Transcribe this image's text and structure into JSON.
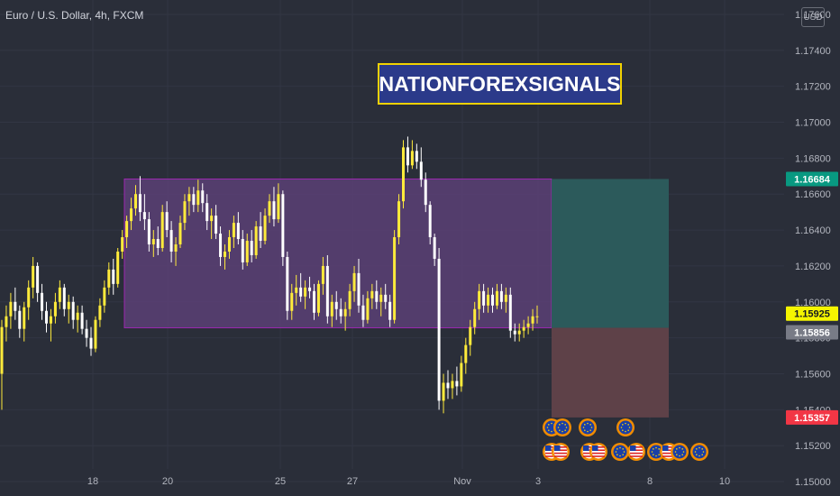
{
  "header": {
    "title": "Euro / U.S. Dollar, 4h, FXCM",
    "currency": "USD"
  },
  "watermark": {
    "text": "NATIONFOREXSIGNALS"
  },
  "colors": {
    "background": "#2a2e39",
    "candle": "#ffeb3b",
    "candle_down": "#ffffff",
    "box_fill": "#5b3f75",
    "box_border": "#9c27b0",
    "target_zone": "#2c5a5b",
    "stop_zone": "#5e4148",
    "target_label": "#089981",
    "stop_label": "#f23645",
    "current_label": "#f5f500",
    "entry_label": "#787b86",
    "grid": "#323644",
    "axis_text": "#b2b5be"
  },
  "chart_data": {
    "type": "candlestick",
    "title": "Euro / U.S. Dollar, 4h, FXCM",
    "ylim": [
      1.1492,
      1.1768
    ],
    "yticks": [
      "1.17600",
      "1.17400",
      "1.17200",
      "1.17000",
      "1.16800",
      "1.16600",
      "1.16400",
      "1.16200",
      "1.16000",
      "1.15800",
      "1.15600",
      "1.15400",
      "1.15200",
      "1.15000"
    ],
    "xticks": [
      "18",
      "20",
      "25",
      "27",
      "Nov",
      "3",
      "8",
      "10"
    ],
    "price_labels": [
      {
        "text": "1.16684",
        "value": 1.16684,
        "role": "target"
      },
      {
        "text": "1.15925",
        "value": 1.15925,
        "role": "current"
      },
      {
        "text": "1.15856",
        "value": 1.15856,
        "role": "entry"
      },
      {
        "text": "1.15357",
        "value": 1.15357,
        "role": "stop"
      }
    ],
    "range_box": {
      "top": 1.16684,
      "bottom": 1.15856
    },
    "position": {
      "entry": 1.15856,
      "target": 1.16684,
      "stop": 1.15357
    },
    "candles": [
      [
        1.156,
        1.159,
        1.154,
        1.1586
      ],
      [
        1.1586,
        1.1598,
        1.1578,
        1.1592
      ],
      [
        1.1592,
        1.1605,
        1.1585,
        1.16
      ],
      [
        1.16,
        1.1608,
        1.159,
        1.1595
      ],
      [
        1.1595,
        1.1598,
        1.158,
        1.1585
      ],
      [
        1.1585,
        1.16,
        1.1578,
        1.1597
      ],
      [
        1.1597,
        1.1612,
        1.159,
        1.1608
      ],
      [
        1.1608,
        1.1625,
        1.1602,
        1.162
      ],
      [
        1.162,
        1.1622,
        1.16,
        1.1605
      ],
      [
        1.1605,
        1.161,
        1.159,
        1.1595
      ],
      [
        1.1595,
        1.16,
        1.1583,
        1.1588
      ],
      [
        1.1588,
        1.1596,
        1.1578,
        1.1592
      ],
      [
        1.1592,
        1.1605,
        1.1588,
        1.16
      ],
      [
        1.16,
        1.1612,
        1.1596,
        1.1608
      ],
      [
        1.1608,
        1.161,
        1.1592,
        1.1596
      ],
      [
        1.1596,
        1.1604,
        1.1588,
        1.16
      ],
      [
        1.16,
        1.1603,
        1.1585,
        1.159
      ],
      [
        1.159,
        1.1598,
        1.1583,
        1.1594
      ],
      [
        1.1594,
        1.1598,
        1.1582,
        1.1585
      ],
      [
        1.1585,
        1.159,
        1.1575,
        1.158
      ],
      [
        1.158,
        1.1586,
        1.157,
        1.1574
      ],
      [
        1.1574,
        1.1592,
        1.1572,
        1.159
      ],
      [
        1.159,
        1.1602,
        1.1586,
        1.1598
      ],
      [
        1.1598,
        1.1612,
        1.1594,
        1.1608
      ],
      [
        1.1608,
        1.1622,
        1.1604,
        1.1618
      ],
      [
        1.1618,
        1.1624,
        1.1604,
        1.161
      ],
      [
        1.161,
        1.163,
        1.1608,
        1.1628
      ],
      [
        1.1628,
        1.164,
        1.1624,
        1.1636
      ],
      [
        1.1636,
        1.1648,
        1.163,
        1.1645
      ],
      [
        1.1645,
        1.1658,
        1.164,
        1.1652
      ],
      [
        1.1652,
        1.1665,
        1.1648,
        1.166
      ],
      [
        1.166,
        1.167,
        1.1645,
        1.165
      ],
      [
        1.165,
        1.166,
        1.164,
        1.1646
      ],
      [
        1.1646,
        1.165,
        1.1628,
        1.1632
      ],
      [
        1.1632,
        1.164,
        1.1625,
        1.1635
      ],
      [
        1.1635,
        1.1642,
        1.1626,
        1.163
      ],
      [
        1.163,
        1.1654,
        1.1628,
        1.165
      ],
      [
        1.165,
        1.1656,
        1.1636,
        1.164
      ],
      [
        1.164,
        1.1645,
        1.1622,
        1.1628
      ],
      [
        1.1628,
        1.1636,
        1.162,
        1.1632
      ],
      [
        1.1632,
        1.1648,
        1.163,
        1.1644
      ],
      [
        1.1644,
        1.166,
        1.164,
        1.1656
      ],
      [
        1.1656,
        1.1664,
        1.1648,
        1.166
      ],
      [
        1.166,
        1.1664,
        1.165,
        1.1654
      ],
      [
        1.1654,
        1.1668,
        1.165,
        1.1662
      ],
      [
        1.1662,
        1.1666,
        1.165,
        1.1655
      ],
      [
        1.1655,
        1.166,
        1.164,
        1.1645
      ],
      [
        1.1645,
        1.1652,
        1.1635,
        1.1648
      ],
      [
        1.1648,
        1.1654,
        1.1635,
        1.1638
      ],
      [
        1.1638,
        1.1642,
        1.162,
        1.1625
      ],
      [
        1.1625,
        1.1632,
        1.1618,
        1.1628
      ],
      [
        1.1628,
        1.164,
        1.1624,
        1.1636
      ],
      [
        1.1636,
        1.1648,
        1.163,
        1.1644
      ],
      [
        1.1644,
        1.165,
        1.1632,
        1.1635
      ],
      [
        1.1635,
        1.164,
        1.1618,
        1.1622
      ],
      [
        1.1622,
        1.1638,
        1.162,
        1.1634
      ],
      [
        1.1634,
        1.164,
        1.1622,
        1.1626
      ],
      [
        1.1626,
        1.1645,
        1.1624,
        1.1642
      ],
      [
        1.1642,
        1.165,
        1.163,
        1.1634
      ],
      [
        1.1634,
        1.1652,
        1.1632,
        1.1648
      ],
      [
        1.1648,
        1.166,
        1.1644,
        1.1656
      ],
      [
        1.1656,
        1.1664,
        1.1642,
        1.1646
      ],
      [
        1.1646,
        1.1666,
        1.1644,
        1.166
      ],
      [
        1.166,
        1.1662,
        1.162,
        1.1625
      ],
      [
        1.1625,
        1.1628,
        1.159,
        1.1595
      ],
      [
        1.1595,
        1.161,
        1.159,
        1.1605
      ],
      [
        1.1605,
        1.1615,
        1.1598,
        1.1608
      ],
      [
        1.1608,
        1.1616,
        1.16,
        1.1603
      ],
      [
        1.1603,
        1.1612,
        1.1596,
        1.1608
      ],
      [
        1.1608,
        1.1614,
        1.1602,
        1.1606
      ],
      [
        1.1606,
        1.161,
        1.159,
        1.1594
      ],
      [
        1.1594,
        1.1612,
        1.1592,
        1.161
      ],
      [
        1.161,
        1.1625,
        1.1604,
        1.162
      ],
      [
        1.162,
        1.1626,
        1.1588,
        1.1592
      ],
      [
        1.1592,
        1.1604,
        1.1586,
        1.16
      ],
      [
        1.16,
        1.1606,
        1.159,
        1.1596
      ],
      [
        1.1596,
        1.1602,
        1.1588,
        1.1592
      ],
      [
        1.1592,
        1.16,
        1.1584,
        1.1596
      ],
      [
        1.1596,
        1.161,
        1.1592,
        1.1606
      ],
      [
        1.1606,
        1.162,
        1.16,
        1.1616
      ],
      [
        1.1616,
        1.1624,
        1.1594,
        1.1598
      ],
      [
        1.1598,
        1.1604,
        1.1586,
        1.159
      ],
      [
        1.159,
        1.1606,
        1.1588,
        1.1602
      ],
      [
        1.1602,
        1.161,
        1.1596,
        1.1606
      ],
      [
        1.1606,
        1.1612,
        1.1596,
        1.16
      ],
      [
        1.16,
        1.1608,
        1.1592,
        1.1604
      ],
      [
        1.1604,
        1.161,
        1.1596,
        1.16
      ],
      [
        1.16,
        1.1604,
        1.1586,
        1.159
      ],
      [
        1.159,
        1.164,
        1.1588,
        1.1636
      ],
      [
        1.1636,
        1.166,
        1.1632,
        1.1656
      ],
      [
        1.1656,
        1.169,
        1.1652,
        1.1686
      ],
      [
        1.1686,
        1.1692,
        1.1672,
        1.1676
      ],
      [
        1.1676,
        1.169,
        1.1674,
        1.1684
      ],
      [
        1.1684,
        1.1688,
        1.1674,
        1.1678
      ],
      [
        1.1678,
        1.1686,
        1.1664,
        1.1668
      ],
      [
        1.1668,
        1.1672,
        1.165,
        1.1654
      ],
      [
        1.1654,
        1.1656,
        1.1632,
        1.1636
      ],
      [
        1.1636,
        1.1638,
        1.162,
        1.1624
      ],
      [
        1.1624,
        1.163,
        1.154,
        1.1545
      ],
      [
        1.1545,
        1.156,
        1.1538,
        1.1555
      ],
      [
        1.1555,
        1.1562,
        1.1546,
        1.1552
      ],
      [
        1.1552,
        1.156,
        1.1546,
        1.1556
      ],
      [
        1.1556,
        1.1564,
        1.1548,
        1.1553
      ],
      [
        1.1553,
        1.157,
        1.155,
        1.1566
      ],
      [
        1.1566,
        1.158,
        1.156,
        1.1576
      ],
      [
        1.1576,
        1.159,
        1.157,
        1.1586
      ],
      [
        1.1586,
        1.16,
        1.1582,
        1.1596
      ],
      [
        1.1596,
        1.161,
        1.159,
        1.1606
      ],
      [
        1.1606,
        1.161,
        1.1594,
        1.1598
      ],
      [
        1.1598,
        1.1608,
        1.1594,
        1.1604
      ],
      [
        1.1604,
        1.1608,
        1.1594,
        1.1598
      ],
      [
        1.1598,
        1.161,
        1.1596,
        1.1606
      ],
      [
        1.1606,
        1.161,
        1.1596,
        1.16
      ],
      [
        1.16,
        1.1608,
        1.1594,
        1.1604
      ],
      [
        1.1604,
        1.1608,
        1.158,
        1.1584
      ],
      [
        1.1584,
        1.1588,
        1.1578,
        1.1582
      ],
      [
        1.1582,
        1.1588,
        1.1578,
        1.1584
      ],
      [
        1.1584,
        1.159,
        1.158,
        1.1586
      ],
      [
        1.1586,
        1.1592,
        1.1582,
        1.1588
      ],
      [
        1.1588,
        1.1596,
        1.1584,
        1.1592
      ],
      [
        1.1592,
        1.1598,
        1.1588,
        1.1592
      ]
    ]
  },
  "events": {
    "row1": [
      "eu",
      "eu",
      "eu",
      "eu"
    ],
    "row2": [
      "us",
      "us",
      "us",
      "us",
      "eu",
      "us",
      "eu",
      "us",
      "eu",
      "eu"
    ]
  }
}
